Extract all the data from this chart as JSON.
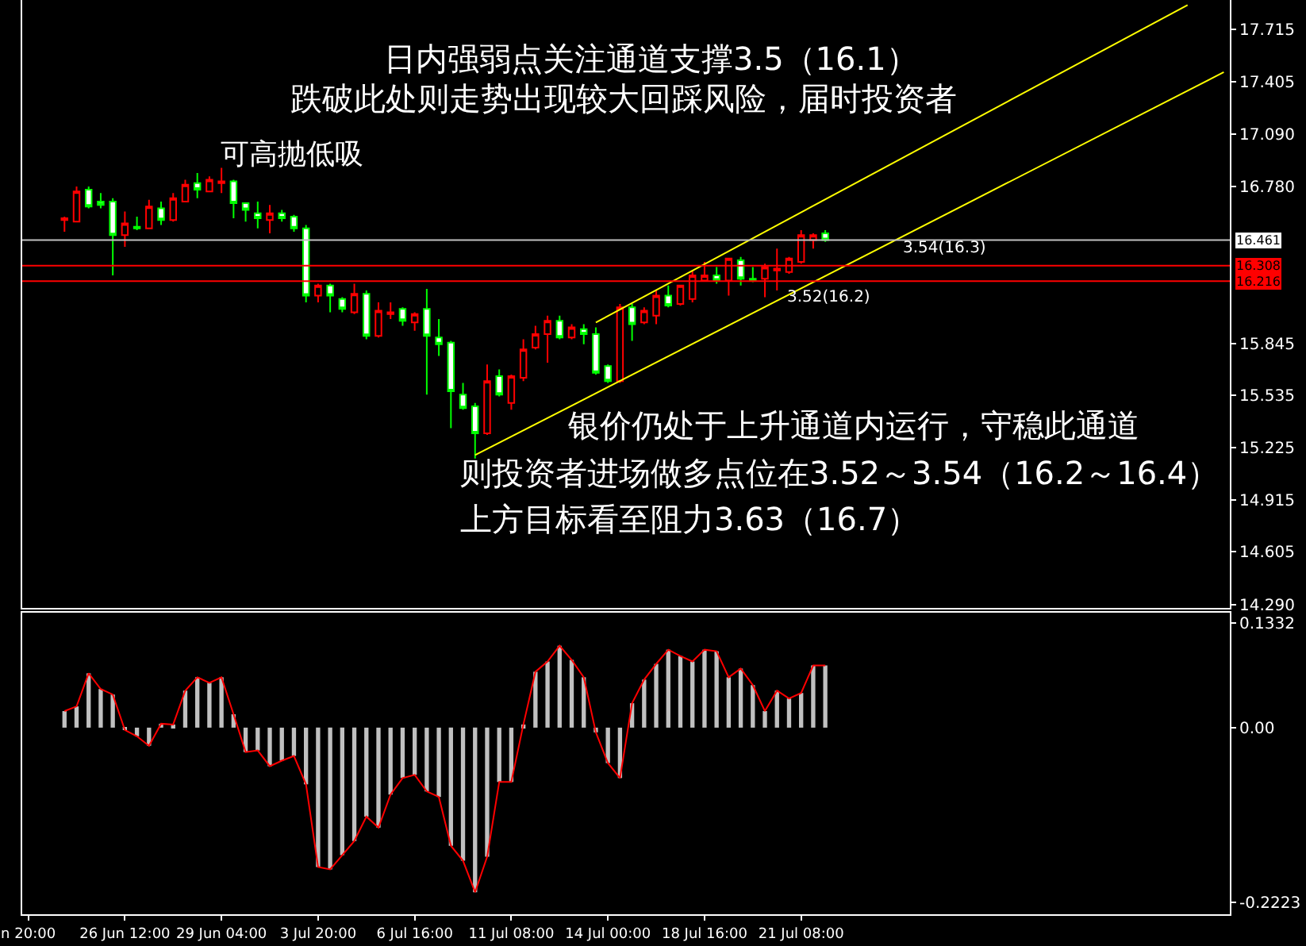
{
  "chart_data": [
    {
      "type": "candlestick",
      "categories": [
        "n 20:00",
        null,
        null,
        null,
        null,
        null,
        null,
        null,
        "26 Jun 12:00",
        null,
        null,
        null,
        null,
        null,
        null,
        null,
        "29 Jun 04:00",
        null,
        null,
        null,
        null,
        null,
        null,
        null,
        "3 Jul 20:00",
        null,
        null,
        null,
        null,
        null,
        null,
        null,
        "6 Jul 16:00",
        null,
        null,
        null,
        null,
        null,
        null,
        null,
        "11 Jul 08:00",
        null,
        null,
        null,
        null,
        null,
        null,
        null,
        "14 Jul 00:00",
        null,
        null,
        null,
        null,
        null,
        null,
        null,
        "18 Jul 16:00",
        null,
        null,
        null,
        null,
        null,
        null,
        null,
        "21 Jul 08:00",
        null,
        null,
        null,
        null,
        null,
        null,
        null,
        null,
        null,
        null,
        null,
        null,
        null,
        null,
        null,
        null,
        null,
        null,
        null,
        null,
        null,
        null,
        null,
        null,
        null,
        null,
        null,
        null,
        null,
        null,
        null,
        null,
        null,
        null,
        null
      ],
      "ohlc": [
        null,
        null,
        null,
        [
          16.58,
          16.6,
          16.51,
          16.59
        ],
        [
          16.57,
          16.78,
          16.57,
          16.75
        ],
        [
          16.76,
          16.78,
          16.65,
          16.66
        ],
        [
          16.69,
          16.74,
          16.65,
          16.67
        ],
        [
          16.69,
          16.71,
          16.25,
          16.49
        ],
        [
          16.49,
          16.63,
          16.42,
          16.56
        ],
        [
          16.54,
          16.6,
          16.52,
          16.53
        ],
        [
          16.53,
          16.7,
          16.53,
          16.66
        ],
        [
          16.65,
          16.69,
          16.55,
          16.58
        ],
        [
          16.58,
          16.74,
          16.57,
          16.71
        ],
        [
          16.69,
          16.82,
          16.69,
          16.79
        ],
        [
          16.8,
          16.86,
          16.71,
          16.76
        ],
        [
          16.75,
          16.84,
          16.75,
          16.82
        ],
        [
          16.8,
          16.89,
          16.74,
          16.81
        ],
        [
          16.81,
          16.82,
          16.59,
          16.68
        ],
        [
          16.68,
          16.68,
          16.57,
          16.64
        ],
        [
          16.62,
          16.69,
          16.53,
          16.59
        ],
        [
          16.58,
          16.67,
          16.5,
          16.62
        ],
        [
          16.62,
          16.64,
          16.57,
          16.59
        ],
        [
          16.6,
          16.61,
          16.51,
          16.53
        ],
        [
          16.53,
          16.55,
          16.09,
          16.13
        ],
        [
          16.13,
          16.2,
          16.09,
          16.19
        ],
        [
          16.19,
          16.2,
          16.03,
          16.13
        ],
        [
          16.11,
          16.12,
          16.03,
          16.05
        ],
        [
          16.03,
          16.2,
          16.02,
          16.14
        ],
        [
          16.14,
          16.16,
          15.87,
          15.89
        ],
        [
          15.89,
          16.09,
          15.88,
          16.04
        ],
        [
          16.02,
          16.09,
          15.99,
          16.03
        ],
        [
          16.05,
          16.06,
          15.95,
          15.98
        ],
        [
          15.97,
          16.03,
          15.92,
          16.02
        ],
        [
          16.05,
          16.17,
          15.54,
          15.89
        ],
        [
          15.88,
          15.99,
          15.77,
          15.84
        ],
        [
          15.85,
          15.86,
          15.34,
          15.56
        ],
        [
          15.54,
          15.61,
          15.45,
          15.46
        ],
        [
          15.47,
          15.49,
          15.16,
          15.31
        ],
        [
          15.31,
          15.72,
          15.3,
          15.62
        ],
        [
          15.65,
          15.69,
          15.53,
          15.54
        ],
        [
          15.49,
          15.66,
          15.45,
          15.65
        ],
        [
          15.64,
          15.87,
          15.62,
          15.81
        ],
        [
          15.82,
          15.95,
          15.81,
          15.9
        ],
        [
          15.9,
          16.01,
          15.73,
          15.98
        ],
        [
          15.98,
          16.01,
          15.87,
          15.88
        ],
        [
          15.88,
          15.96,
          15.87,
          15.94
        ],
        [
          15.93,
          15.96,
          15.84,
          15.9
        ],
        [
          15.9,
          15.94,
          15.66,
          15.67
        ],
        [
          15.71,
          15.72,
          15.61,
          15.62
        ],
        [
          15.62,
          16.08,
          15.61,
          16.06
        ],
        [
          16.06,
          16.08,
          15.86,
          15.96
        ],
        [
          15.97,
          16.06,
          15.96,
          16.04
        ],
        [
          16.01,
          16.16,
          15.96,
          16.13
        ],
        [
          16.13,
          16.19,
          16.06,
          16.07
        ],
        [
          16.08,
          16.19,
          16.07,
          16.19
        ],
        [
          16.11,
          16.28,
          16.09,
          16.25
        ],
        [
          16.22,
          16.33,
          16.22,
          16.25
        ],
        [
          16.25,
          16.3,
          16.2,
          16.22
        ],
        [
          16.22,
          16.35,
          16.13,
          16.35
        ],
        [
          16.34,
          16.36,
          16.19,
          16.23
        ],
        [
          16.23,
          16.3,
          16.21,
          16.22
        ],
        [
          16.23,
          16.32,
          16.12,
          16.3
        ],
        [
          16.28,
          16.41,
          16.16,
          16.29
        ],
        [
          16.27,
          16.36,
          16.26,
          16.35
        ],
        [
          16.33,
          16.52,
          16.32,
          16.49
        ],
        [
          16.46,
          16.5,
          16.41,
          16.49
        ],
        [
          16.5,
          16.52,
          16.45,
          16.461
        ],
        null,
        null,
        null,
        null,
        null,
        null,
        null,
        null,
        null,
        null,
        null,
        null,
        null,
        null,
        null,
        null,
        null,
        null,
        null,
        null,
        null,
        null,
        null,
        null,
        null,
        null,
        null,
        null,
        null,
        null,
        null,
        null,
        null
      ],
      "colors": [
        null,
        null,
        null,
        "#ff0000",
        "#ff0000",
        "#00ff00",
        "#00ff00",
        "#00ff00",
        "#ff0000",
        "#00ff00",
        "#ff0000",
        "#00ff00",
        "#ff0000",
        "#ff0000",
        "#00ff00",
        "#ff0000",
        "#ff0000",
        "#00ff00",
        "#00ff00",
        "#00ff00",
        "#ff0000",
        "#00ff00",
        "#00ff00",
        "#00ff00",
        "#ff0000",
        "#00ff00",
        "#00ff00",
        "#ff0000",
        "#00ff00",
        "#ff0000",
        "#ff0000",
        "#00ff00",
        "#ff0000",
        "#00ff00",
        "#00ff00",
        "#00ff00",
        "#00ff00",
        "#00ff00",
        "#ff0000",
        "#00ff00",
        "#ff0000",
        "#ff0000",
        "#ff0000",
        "#ff0000",
        "#00ff00",
        "#ff0000",
        "#00ff00",
        "#00ff00",
        "#00ff00",
        "#ff0000",
        "#00ff00",
        "#ff0000",
        "#ff0000",
        "#00ff00",
        "#ff0000",
        "#ff0000",
        "#ff0000",
        "#00ff00",
        "#ff0000",
        "#00ff00",
        "#00ff00",
        "#ff0000",
        "#ff0000",
        "#ff0000",
        "#ff0000",
        "#ff0000",
        "#00ff00",
        null,
        null,
        null,
        null,
        null,
        null,
        null,
        null,
        null,
        null,
        null,
        null,
        null,
        null,
        null,
        null,
        null,
        null,
        null,
        null,
        null,
        null,
        null,
        null,
        null,
        null,
        null,
        null,
        null,
        null,
        null,
        null,
        null
      ],
      "series": [
        {
          "type": "line",
          "color": "#ffff00",
          "values": [
            null,
            null,
            null,
            null,
            null,
            null,
            null,
            null,
            null,
            null,
            null,
            null,
            null,
            null,
            null,
            null,
            null,
            null,
            null,
            null,
            null,
            null,
            null,
            null,
            null,
            null,
            null,
            null,
            null,
            null,
            null,
            null,
            null,
            null,
            null,
            null,
            null,
            15.18,
            null,
            null,
            null,
            null,
            null,
            null,
            null,
            null,
            null,
            null,
            null,
            null,
            null,
            null,
            null,
            null,
            null,
            null,
            null,
            null,
            null,
            null,
            null,
            null,
            null,
            null,
            null,
            null,
            null,
            null,
            null,
            null,
            null,
            null,
            null,
            null,
            null,
            null,
            null,
            null,
            null,
            null,
            null,
            null,
            null,
            null,
            null,
            null,
            null,
            null,
            null,
            null,
            null,
            null,
            null,
            null,
            null,
            null,
            null,
            null,
            null,
            17.46
          ]
        },
        {
          "type": "line",
          "color": "#ffff00",
          "values": [
            null,
            null,
            null,
            null,
            null,
            null,
            null,
            null,
            null,
            null,
            null,
            null,
            null,
            null,
            null,
            null,
            null,
            null,
            null,
            null,
            null,
            null,
            null,
            null,
            null,
            null,
            null,
            null,
            null,
            null,
            null,
            null,
            null,
            null,
            null,
            null,
            null,
            null,
            null,
            null,
            null,
            null,
            null,
            null,
            null,
            null,
            null,
            15.97,
            null,
            null,
            null,
            null,
            null,
            null,
            null,
            null,
            null,
            null,
            null,
            null,
            null,
            null,
            null,
            null,
            null,
            null,
            null,
            null,
            null,
            null,
            null,
            null,
            null,
            null,
            null,
            null,
            null,
            null,
            null,
            null,
            null,
            null,
            null,
            null,
            null,
            null,
            null,
            null,
            null,
            null,
            null,
            null,
            null,
            null,
            null,
            null,
            17.86,
            null,
            null,
            null
          ]
        }
      ],
      "ylim": [
        14.27,
        17.89
      ],
      "yticks": [
        {
          "value": 17.715,
          "label": "17.715"
        },
        {
          "value": 17.405,
          "label": "17.405"
        },
        {
          "value": 17.09,
          "label": "17.090"
        },
        {
          "value": 16.78,
          "label": "16.780"
        },
        {
          "value": 15.845,
          "label": "15.845"
        },
        {
          "value": 15.535,
          "label": "15.535"
        },
        {
          "value": 15.225,
          "label": "15.225"
        },
        {
          "value": 14.915,
          "label": "14.915"
        },
        {
          "value": 14.605,
          "label": "14.605"
        },
        {
          "value": 14.29,
          "label": "14.290"
        }
      ],
      "ref_lines": [
        {
          "axis": "y",
          "value": 16.461,
          "label": "16.461",
          "color": "#c0c0c0"
        },
        {
          "axis": "y",
          "value": 16.308,
          "label": "16.308",
          "color": "#ff0000"
        },
        {
          "axis": "y",
          "value": 16.216,
          "label": "16.216",
          "color": "#ff0000"
        }
      ],
      "annotations": [
        "日内强弱点关注通道支撑3.5（16.1）",
        "跌破此处则走势出现较大回踩风险，届时投资者",
        "可高抛低吸",
        {
          "text": "3.54(16.3)",
          "y": 16.308
        },
        {
          "text": "3.52(16.2)",
          "y": 16.216
        },
        "银价仍处于上升通道内运行，守稳此通道",
        "则投资者进场做多点位在3.52～3.54（16.2～16.4）",
        "上方目标看至阻力3.63（16.7）"
      ],
      "tick_labels": "y",
      "grid": false
    },
    {
      "type": "bar",
      "categories": [
        "n 20:00",
        null,
        null,
        null,
        null,
        null,
        null,
        null,
        "26 Jun 12:00",
        null,
        null,
        null,
        null,
        null,
        null,
        null,
        "29 Jun 04:00",
        null,
        null,
        null,
        null,
        null,
        null,
        null,
        "3 Jul 20:00",
        null,
        null,
        null,
        null,
        null,
        null,
        null,
        "6 Jul 16:00",
        null,
        null,
        null,
        null,
        null,
        null,
        null,
        "11 Jul 08:00",
        null,
        null,
        null,
        null,
        null,
        null,
        null,
        "14 Jul 00:00",
        null,
        null,
        null,
        null,
        null,
        null,
        null,
        "18 Jul 16:00",
        null,
        null,
        null,
        null,
        null,
        null,
        null,
        "21 Jul 08:00",
        null,
        null,
        null,
        null,
        null,
        null,
        null,
        null,
        null,
        null,
        null,
        null,
        null,
        null,
        null,
        null,
        null,
        null,
        null,
        null,
        null,
        null,
        null,
        null,
        null,
        null,
        null,
        null,
        null,
        null,
        null,
        null,
        null,
        null,
        null
      ],
      "series": [
        {
          "type": "bar",
          "color": "#c0c0c0",
          "values": [
            null,
            null,
            null,
            0.021,
            0.027,
            0.069,
            0.049,
            0.042,
            -0.003,
            -0.011,
            -0.023,
            0.005,
            0.004,
            0.047,
            0.064,
            0.057,
            0.064,
            0.017,
            -0.031,
            -0.029,
            -0.049,
            -0.042,
            -0.036,
            -0.072,
            -0.177,
            -0.18,
            -0.162,
            -0.144,
            -0.113,
            -0.127,
            -0.085,
            -0.064,
            -0.06,
            -0.081,
            -0.088,
            -0.15,
            -0.169,
            -0.209,
            -0.164,
            -0.069,
            -0.069,
            0.004,
            0.071,
            0.084,
            0.104,
            0.086,
            0.064,
            -0.006,
            -0.045,
            -0.064,
            0.031,
            0.061,
            0.081,
            0.099,
            0.091,
            0.084,
            0.099,
            0.097,
            0.064,
            0.075,
            0.054,
            0.021,
            0.047,
            0.037,
            0.044,
            0.079,
            0.079,
            null,
            null,
            null,
            null,
            null,
            null,
            null,
            null,
            null,
            null,
            null,
            null,
            null,
            null,
            null,
            null,
            null,
            null,
            null,
            null,
            null,
            null,
            null,
            null,
            null,
            null,
            null,
            null,
            null,
            null,
            null,
            null,
            null
          ]
        },
        {
          "type": "line",
          "color": "#ff0000",
          "values": [
            null,
            null,
            null,
            0.021,
            0.027,
            0.069,
            0.049,
            0.042,
            -0.003,
            -0.011,
            -0.023,
            0.005,
            0.004,
            0.047,
            0.064,
            0.057,
            0.064,
            0.017,
            -0.031,
            -0.029,
            -0.049,
            -0.042,
            -0.036,
            -0.072,
            -0.177,
            -0.18,
            -0.162,
            -0.144,
            -0.113,
            -0.127,
            -0.085,
            -0.064,
            -0.06,
            -0.081,
            -0.088,
            -0.15,
            -0.169,
            -0.209,
            -0.164,
            -0.069,
            -0.069,
            0.004,
            0.071,
            0.084,
            0.104,
            0.086,
            0.064,
            -0.006,
            -0.045,
            -0.064,
            0.031,
            0.061,
            0.081,
            0.099,
            0.091,
            0.084,
            0.099,
            0.097,
            0.064,
            0.075,
            0.054,
            0.021,
            0.047,
            0.037,
            0.044,
            0.079,
            0.079,
            null,
            null,
            null,
            null,
            null,
            null,
            null,
            null,
            null,
            null,
            null,
            null,
            null,
            null,
            null,
            null,
            null,
            null,
            null,
            null,
            null,
            null,
            null,
            null,
            null,
            null,
            null,
            null,
            null,
            null,
            null,
            null,
            null
          ]
        }
      ],
      "ylim": [
        -0.237,
        0.146
      ],
      "yticks": [
        0.1332,
        {
          "value": 0,
          "label": "0.00"
        },
        -0.2223
      ],
      "grid": false
    }
  ]
}
